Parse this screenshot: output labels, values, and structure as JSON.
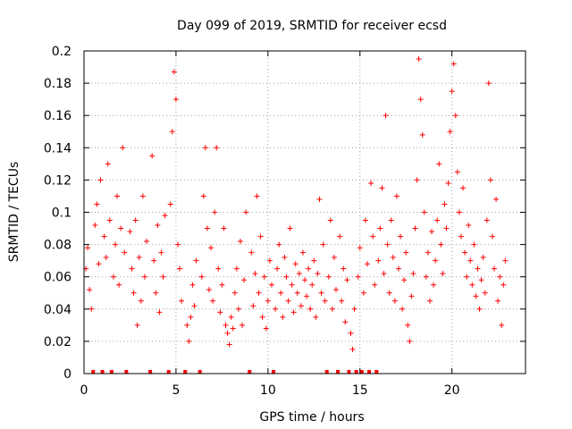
{
  "chart_data": {
    "type": "scatter",
    "title": "Day 099 of 2019, SRMTID for receiver ecsd",
    "xlabel": "GPS time / hours",
    "ylabel": "SRMTID / TECUs",
    "xlim": [
      0,
      24
    ],
    "ylim": [
      0,
      0.2
    ],
    "xticks": [
      0,
      5,
      10,
      15,
      20
    ],
    "yticks": [
      0,
      0.02,
      0.04,
      0.06,
      0.08,
      0.1,
      0.12,
      0.14,
      0.16,
      0.18,
      0.2
    ],
    "grid": true,
    "marker": "+",
    "color": "#ff0000",
    "gaps_x": [
      0.5,
      1.0,
      1.5,
      2.3,
      3.6,
      4.6,
      5.5,
      6.3,
      9.0,
      10.3,
      13.2,
      13.8,
      14.4,
      14.8,
      15.1,
      15.5,
      15.9
    ],
    "series": [
      {
        "name": "SRMTID",
        "points": [
          [
            0.1,
            0.065
          ],
          [
            0.2,
            0.078
          ],
          [
            0.3,
            0.052
          ],
          [
            0.4,
            0.04
          ],
          [
            0.6,
            0.092
          ],
          [
            0.7,
            0.105
          ],
          [
            0.8,
            0.068
          ],
          [
            0.9,
            0.12
          ],
          [
            1.1,
            0.085
          ],
          [
            1.2,
            0.072
          ],
          [
            1.3,
            0.13
          ],
          [
            1.4,
            0.095
          ],
          [
            1.6,
            0.06
          ],
          [
            1.7,
            0.08
          ],
          [
            1.8,
            0.11
          ],
          [
            1.9,
            0.055
          ],
          [
            2.0,
            0.09
          ],
          [
            2.1,
            0.14
          ],
          [
            2.2,
            0.075
          ],
          [
            2.5,
            0.088
          ],
          [
            2.6,
            0.065
          ],
          [
            2.7,
            0.05
          ],
          [
            2.8,
            0.095
          ],
          [
            2.9,
            0.03
          ],
          [
            3.0,
            0.072
          ],
          [
            3.1,
            0.045
          ],
          [
            3.2,
            0.11
          ],
          [
            3.3,
            0.06
          ],
          [
            3.4,
            0.082
          ],
          [
            3.7,
            0.135
          ],
          [
            3.8,
            0.07
          ],
          [
            3.9,
            0.05
          ],
          [
            4.0,
            0.092
          ],
          [
            4.1,
            0.038
          ],
          [
            4.2,
            0.075
          ],
          [
            4.3,
            0.06
          ],
          [
            4.4,
            0.098
          ],
          [
            4.7,
            0.105
          ],
          [
            4.8,
            0.15
          ],
          [
            4.9,
            0.187
          ],
          [
            5.0,
            0.17
          ],
          [
            5.1,
            0.08
          ],
          [
            5.2,
            0.065
          ],
          [
            5.3,
            0.045
          ],
          [
            5.6,
            0.03
          ],
          [
            5.7,
            0.02
          ],
          [
            5.8,
            0.035
          ],
          [
            5.9,
            0.055
          ],
          [
            6.0,
            0.042
          ],
          [
            6.1,
            0.07
          ],
          [
            6.4,
            0.06
          ],
          [
            6.5,
            0.11
          ],
          [
            6.6,
            0.14
          ],
          [
            6.7,
            0.09
          ],
          [
            6.8,
            0.052
          ],
          [
            6.9,
            0.078
          ],
          [
            7.0,
            0.045
          ],
          [
            7.1,
            0.1
          ],
          [
            7.2,
            0.14
          ],
          [
            7.3,
            0.065
          ],
          [
            7.4,
            0.038
          ],
          [
            7.5,
            0.055
          ],
          [
            7.6,
            0.09
          ],
          [
            7.7,
            0.03
          ],
          [
            7.8,
            0.025
          ],
          [
            7.9,
            0.018
          ],
          [
            8.0,
            0.035
          ],
          [
            8.1,
            0.028
          ],
          [
            8.2,
            0.05
          ],
          [
            8.3,
            0.065
          ],
          [
            8.4,
            0.04
          ],
          [
            8.5,
            0.082
          ],
          [
            8.6,
            0.03
          ],
          [
            8.7,
            0.058
          ],
          [
            8.8,
            0.1
          ],
          [
            9.1,
            0.075
          ],
          [
            9.2,
            0.042
          ],
          [
            9.3,
            0.062
          ],
          [
            9.4,
            0.11
          ],
          [
            9.5,
            0.05
          ],
          [
            9.6,
            0.085
          ],
          [
            9.7,
            0.035
          ],
          [
            9.8,
            0.06
          ],
          [
            9.9,
            0.028
          ],
          [
            10.0,
            0.045
          ],
          [
            10.1,
            0.07
          ],
          [
            10.2,
            0.055
          ],
          [
            10.4,
            0.04
          ],
          [
            10.5,
            0.065
          ],
          [
            10.6,
            0.08
          ],
          [
            10.7,
            0.05
          ],
          [
            10.8,
            0.035
          ],
          [
            10.9,
            0.072
          ],
          [
            11.0,
            0.06
          ],
          [
            11.1,
            0.045
          ],
          [
            11.2,
            0.09
          ],
          [
            11.3,
            0.055
          ],
          [
            11.4,
            0.038
          ],
          [
            11.5,
            0.068
          ],
          [
            11.6,
            0.05
          ],
          [
            11.7,
            0.062
          ],
          [
            11.8,
            0.042
          ],
          [
            11.9,
            0.075
          ],
          [
            12.0,
            0.058
          ],
          [
            12.1,
            0.048
          ],
          [
            12.2,
            0.065
          ],
          [
            12.3,
            0.04
          ],
          [
            12.4,
            0.055
          ],
          [
            12.5,
            0.07
          ],
          [
            12.6,
            0.035
          ],
          [
            12.7,
            0.062
          ],
          [
            12.8,
            0.108
          ],
          [
            12.9,
            0.05
          ],
          [
            13.0,
            0.08
          ],
          [
            13.1,
            0.045
          ],
          [
            13.3,
            0.06
          ],
          [
            13.4,
            0.095
          ],
          [
            13.5,
            0.04
          ],
          [
            13.6,
            0.072
          ],
          [
            13.7,
            0.052
          ],
          [
            13.9,
            0.085
          ],
          [
            14.0,
            0.045
          ],
          [
            14.1,
            0.065
          ],
          [
            14.2,
            0.032
          ],
          [
            14.3,
            0.058
          ],
          [
            14.5,
            0.025
          ],
          [
            14.6,
            0.015
          ],
          [
            14.7,
            0.04
          ],
          [
            14.9,
            0.06
          ],
          [
            15.0,
            0.078
          ],
          [
            15.2,
            0.05
          ],
          [
            15.3,
            0.095
          ],
          [
            15.4,
            0.068
          ],
          [
            15.6,
            0.118
          ],
          [
            15.7,
            0.085
          ],
          [
            15.8,
            0.055
          ],
          [
            16.0,
            0.07
          ],
          [
            16.1,
            0.09
          ],
          [
            16.2,
            0.115
          ],
          [
            16.3,
            0.062
          ],
          [
            16.4,
            0.16
          ],
          [
            16.5,
            0.08
          ],
          [
            16.6,
            0.05
          ],
          [
            16.7,
            0.095
          ],
          [
            16.8,
            0.072
          ],
          [
            16.9,
            0.045
          ],
          [
            17.0,
            0.11
          ],
          [
            17.1,
            0.065
          ],
          [
            17.2,
            0.085
          ],
          [
            17.3,
            0.04
          ],
          [
            17.4,
            0.058
          ],
          [
            17.5,
            0.075
          ],
          [
            17.6,
            0.03
          ],
          [
            17.7,
            0.02
          ],
          [
            17.8,
            0.048
          ],
          [
            17.9,
            0.062
          ],
          [
            18.0,
            0.09
          ],
          [
            18.1,
            0.12
          ],
          [
            18.2,
            0.195
          ],
          [
            18.3,
            0.17
          ],
          [
            18.4,
            0.148
          ],
          [
            18.5,
            0.1
          ],
          [
            18.6,
            0.06
          ],
          [
            18.7,
            0.075
          ],
          [
            18.8,
            0.045
          ],
          [
            18.9,
            0.088
          ],
          [
            19.0,
            0.055
          ],
          [
            19.1,
            0.07
          ],
          [
            19.2,
            0.095
          ],
          [
            19.3,
            0.13
          ],
          [
            19.4,
            0.08
          ],
          [
            19.5,
            0.062
          ],
          [
            19.6,
            0.105
          ],
          [
            19.7,
            0.09
          ],
          [
            19.8,
            0.118
          ],
          [
            19.9,
            0.15
          ],
          [
            20.0,
            0.175
          ],
          [
            20.1,
            0.192
          ],
          [
            20.2,
            0.16
          ],
          [
            20.3,
            0.125
          ],
          [
            20.4,
            0.1
          ],
          [
            20.5,
            0.085
          ],
          [
            20.6,
            0.115
          ],
          [
            20.7,
            0.075
          ],
          [
            20.8,
            0.06
          ],
          [
            20.9,
            0.092
          ],
          [
            21.0,
            0.07
          ],
          [
            21.1,
            0.055
          ],
          [
            21.2,
            0.08
          ],
          [
            21.3,
            0.048
          ],
          [
            21.4,
            0.065
          ],
          [
            21.5,
            0.04
          ],
          [
            21.6,
            0.058
          ],
          [
            21.7,
            0.072
          ],
          [
            21.8,
            0.05
          ],
          [
            21.9,
            0.095
          ],
          [
            22.0,
            0.18
          ],
          [
            22.1,
            0.12
          ],
          [
            22.2,
            0.085
          ],
          [
            22.3,
            0.065
          ],
          [
            22.4,
            0.108
          ],
          [
            22.5,
            0.045
          ],
          [
            22.6,
            0.06
          ],
          [
            22.7,
            0.03
          ],
          [
            22.8,
            0.055
          ],
          [
            22.9,
            0.07
          ]
        ]
      }
    ]
  }
}
